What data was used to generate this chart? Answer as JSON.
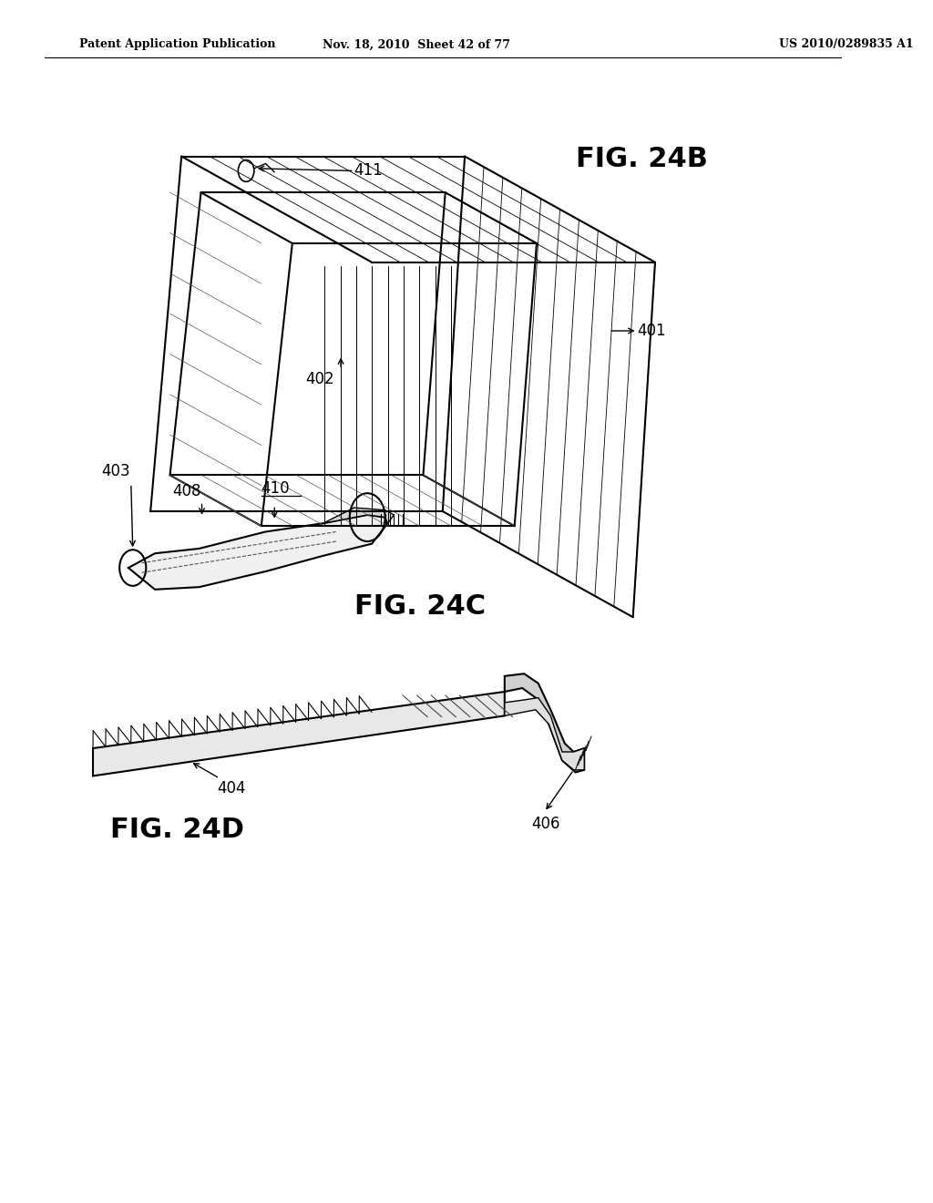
{
  "bg_color": "#ffffff",
  "header_left": "Patent Application Publication",
  "header_mid": "Nov. 18, 2010  Sheet 42 of 77",
  "header_right": "US 2010/0289835 A1",
  "fig24b_label": "FIG. 24B",
  "fig24c_label": "FIG. 24C",
  "fig24d_label": "FIG. 24D",
  "lw_main": 1.5,
  "lw_hatch": 0.6,
  "lw_inner": 0.7
}
